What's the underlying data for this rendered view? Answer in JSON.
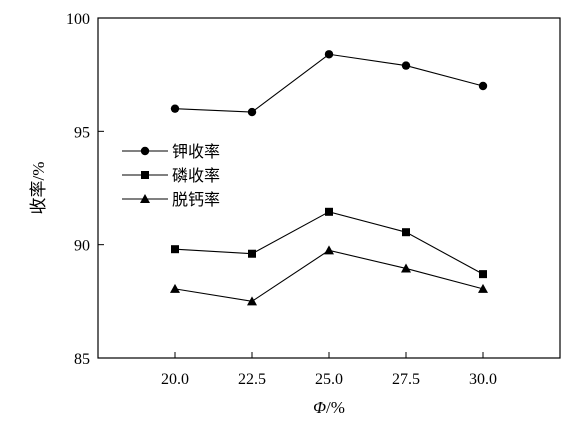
{
  "chart_data": {
    "type": "line",
    "xlabel_var": "Φ",
    "xlabel_unit": "/%",
    "ylabel": "收率/%",
    "x": [
      20.0,
      22.5,
      25.0,
      27.5,
      30.0
    ],
    "x_tick_labels": [
      "20.0",
      "22.5",
      "25.0",
      "27.5",
      "30.0"
    ],
    "xlim": [
      17.5,
      32.5
    ],
    "ylim": [
      85,
      100
    ],
    "y_ticks": [
      85,
      90,
      95,
      100
    ],
    "y_tick_labels": [
      "85",
      "90",
      "95",
      "100"
    ],
    "grid": false,
    "legend_position": "left-middle",
    "series": [
      {
        "name": "钾收率",
        "marker": "circle",
        "values": [
          96.0,
          95.85,
          98.4,
          97.9,
          97.0
        ]
      },
      {
        "name": "磷收率",
        "marker": "square",
        "values": [
          89.8,
          89.6,
          91.45,
          90.55,
          88.7
        ]
      },
      {
        "name": "脱钙率",
        "marker": "triangle",
        "values": [
          88.05,
          87.5,
          89.75,
          88.95,
          88.05
        ]
      }
    ]
  }
}
